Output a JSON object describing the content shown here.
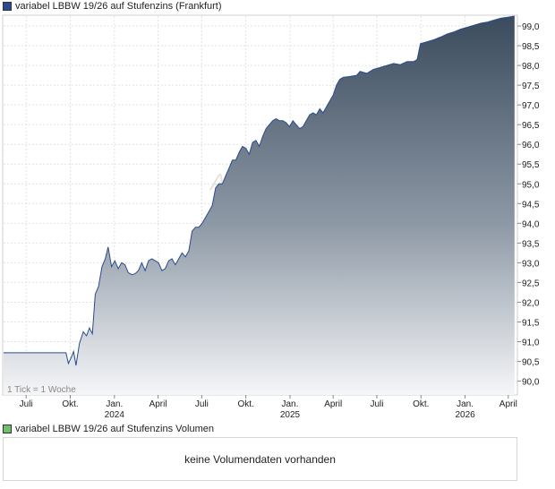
{
  "price_legend": {
    "label": "variabel LBBW 19/26 auf Stufenzins (Frankfurt)",
    "color": "#2b4a8f"
  },
  "volume_legend": {
    "label": "variabel LBBW 19/26 auf Stufenzins Volumen",
    "color": "#6fbf6f"
  },
  "volume_message": "keine Volumendaten vorhanden",
  "watermark": "AKTIE",
  "tick_note": "1 Tick = 1 Woche",
  "chart_data": {
    "type": "area",
    "ylim": [
      89.65,
      99.25
    ],
    "y_ticks": [
      90.0,
      90.5,
      91.0,
      91.5,
      92.0,
      92.5,
      93.0,
      93.5,
      94.0,
      94.5,
      95.0,
      95.5,
      96.0,
      96.5,
      97.0,
      97.5,
      98.0,
      98.5,
      99.0
    ],
    "y_tick_labels": [
      "90,0",
      "90,5",
      "91,0",
      "91,5",
      "92,0",
      "92,5",
      "93,0",
      "93,5",
      "94,0",
      "94,5",
      "95,0",
      "95,5",
      "96,0",
      "96,5",
      "97,0",
      "97,5",
      "98,0",
      "98,5",
      "99,0"
    ],
    "x_range": [
      "2023-05-15",
      "2026-04-20"
    ],
    "x_ticks": [
      {
        "date": "2023-07-01",
        "label": "Juli",
        "year": ""
      },
      {
        "date": "2023-10-01",
        "label": "Okt.",
        "year": ""
      },
      {
        "date": "2024-01-01",
        "label": "Jan.",
        "year": "2024"
      },
      {
        "date": "2024-04-01",
        "label": "April",
        "year": ""
      },
      {
        "date": "2024-07-01",
        "label": "Juli",
        "year": ""
      },
      {
        "date": "2024-10-01",
        "label": "Okt.",
        "year": ""
      },
      {
        "date": "2025-01-01",
        "label": "Jan.",
        "year": "2025"
      },
      {
        "date": "2025-04-01",
        "label": "April",
        "year": ""
      },
      {
        "date": "2025-07-01",
        "label": "Juli",
        "year": ""
      },
      {
        "date": "2025-10-01",
        "label": "Okt.",
        "year": ""
      },
      {
        "date": "2026-01-01",
        "label": "Jan.",
        "year": "2026"
      },
      {
        "date": "2026-04-01",
        "label": "April",
        "year": ""
      }
    ],
    "series": [
      {
        "points": [
          [
            "2023-05-15",
            90.72
          ],
          [
            "2023-06-15",
            90.72
          ],
          [
            "2023-07-15",
            90.72
          ],
          [
            "2023-08-15",
            90.72
          ],
          [
            "2023-09-15",
            90.72
          ],
          [
            "2023-09-22",
            90.72
          ],
          [
            "2023-09-27",
            90.45
          ],
          [
            "2023-10-03",
            90.6
          ],
          [
            "2023-10-08",
            90.75
          ],
          [
            "2023-10-13",
            90.4
          ],
          [
            "2023-10-20",
            90.95
          ],
          [
            "2023-10-28",
            91.25
          ],
          [
            "2023-11-04",
            91.15
          ],
          [
            "2023-11-10",
            91.35
          ],
          [
            "2023-11-16",
            91.2
          ],
          [
            "2023-11-22",
            92.2
          ],
          [
            "2023-11-29",
            92.4
          ],
          [
            "2023-12-06",
            92.9
          ],
          [
            "2023-12-13",
            93.1
          ],
          [
            "2023-12-19",
            93.4
          ],
          [
            "2023-12-26",
            92.9
          ],
          [
            "2024-01-02",
            93.05
          ],
          [
            "2024-01-09",
            92.85
          ],
          [
            "2024-01-16",
            93.0
          ],
          [
            "2024-01-23",
            92.95
          ],
          [
            "2024-01-30",
            92.75
          ],
          [
            "2024-02-06",
            92.7
          ],
          [
            "2024-02-13",
            92.72
          ],
          [
            "2024-02-20",
            92.8
          ],
          [
            "2024-02-27",
            93.0
          ],
          [
            "2024-03-05",
            92.8
          ],
          [
            "2024-03-12",
            93.05
          ],
          [
            "2024-03-19",
            93.1
          ],
          [
            "2024-03-26",
            93.05
          ],
          [
            "2024-04-02",
            93.0
          ],
          [
            "2024-04-09",
            92.8
          ],
          [
            "2024-04-16",
            92.85
          ],
          [
            "2024-04-23",
            93.05
          ],
          [
            "2024-04-30",
            93.1
          ],
          [
            "2024-05-07",
            92.95
          ],
          [
            "2024-05-14",
            93.1
          ],
          [
            "2024-05-21",
            93.25
          ],
          [
            "2024-05-28",
            93.15
          ],
          [
            "2024-06-04",
            93.3
          ],
          [
            "2024-06-11",
            93.8
          ],
          [
            "2024-06-18",
            93.9
          ],
          [
            "2024-06-25",
            93.9
          ],
          [
            "2024-07-02",
            94.0
          ],
          [
            "2024-07-09",
            94.15
          ],
          [
            "2024-07-16",
            94.3
          ],
          [
            "2024-07-23",
            94.45
          ],
          [
            "2024-07-30",
            94.9
          ],
          [
            "2024-08-06",
            95.0
          ],
          [
            "2024-08-13",
            95.0
          ],
          [
            "2024-08-20",
            95.2
          ],
          [
            "2024-08-27",
            95.4
          ],
          [
            "2024-09-03",
            95.6
          ],
          [
            "2024-09-10",
            95.6
          ],
          [
            "2024-09-17",
            95.8
          ],
          [
            "2024-09-24",
            95.95
          ],
          [
            "2024-10-01",
            95.9
          ],
          [
            "2024-10-08",
            95.75
          ],
          [
            "2024-10-15",
            96.05
          ],
          [
            "2024-10-22",
            96.1
          ],
          [
            "2024-10-29",
            95.95
          ],
          [
            "2024-11-05",
            96.2
          ],
          [
            "2024-11-12",
            96.4
          ],
          [
            "2024-11-19",
            96.5
          ],
          [
            "2024-11-26",
            96.6
          ],
          [
            "2024-12-03",
            96.65
          ],
          [
            "2024-12-10",
            96.6
          ],
          [
            "2024-12-17",
            96.6
          ],
          [
            "2024-12-24",
            96.55
          ],
          [
            "2024-12-31",
            96.45
          ],
          [
            "2025-01-07",
            96.6
          ],
          [
            "2025-01-14",
            96.5
          ],
          [
            "2025-01-21",
            96.4
          ],
          [
            "2025-01-28",
            96.45
          ],
          [
            "2025-02-04",
            96.6
          ],
          [
            "2025-02-11",
            96.75
          ],
          [
            "2025-02-18",
            96.8
          ],
          [
            "2025-02-25",
            96.75
          ],
          [
            "2025-03-04",
            96.9
          ],
          [
            "2025-03-11",
            96.8
          ],
          [
            "2025-03-18",
            96.95
          ],
          [
            "2025-03-25",
            97.1
          ],
          [
            "2025-04-01",
            97.25
          ],
          [
            "2025-04-08",
            97.5
          ],
          [
            "2025-04-15",
            97.65
          ],
          [
            "2025-04-22",
            97.7
          ],
          [
            "2025-05-06",
            97.72
          ],
          [
            "2025-05-20",
            97.75
          ],
          [
            "2025-05-27",
            97.85
          ],
          [
            "2025-06-10",
            97.8
          ],
          [
            "2025-06-24",
            97.9
          ],
          [
            "2025-07-08",
            97.95
          ],
          [
            "2025-07-22",
            98.0
          ],
          [
            "2025-08-05",
            98.05
          ],
          [
            "2025-08-19",
            98.02
          ],
          [
            "2025-09-02",
            98.1
          ],
          [
            "2025-09-16",
            98.1
          ],
          [
            "2025-09-23",
            98.15
          ],
          [
            "2025-09-30",
            98.55
          ],
          [
            "2025-10-14",
            98.6
          ],
          [
            "2025-10-28",
            98.65
          ],
          [
            "2025-11-11",
            98.72
          ],
          [
            "2025-11-25",
            98.8
          ],
          [
            "2025-12-09",
            98.85
          ],
          [
            "2025-12-23",
            98.92
          ],
          [
            "2026-01-06",
            98.97
          ],
          [
            "2026-01-20",
            99.02
          ],
          [
            "2026-02-03",
            99.07
          ],
          [
            "2026-02-17",
            99.1
          ],
          [
            "2026-03-03",
            99.15
          ],
          [
            "2026-03-17",
            99.2
          ],
          [
            "2026-03-31",
            99.22
          ],
          [
            "2026-04-14",
            99.25
          ]
        ]
      }
    ]
  }
}
